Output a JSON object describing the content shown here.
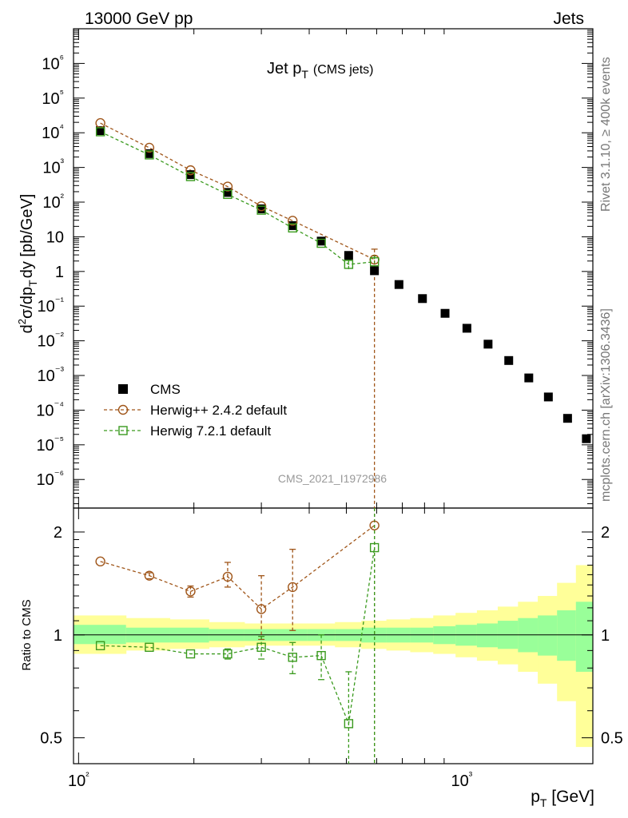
{
  "header": {
    "energy_label": "13000 GeV pp",
    "process_label": "Jets"
  },
  "side_labels": {
    "rivet": "Rivet 3.1.10, ≥ 400k events",
    "mcplots": "mcplots.cern.ch [arXiv:1306.3436]"
  },
  "watermark": "CMS_2021_I1972986",
  "chart_data": [
    {
      "type": "scatter",
      "panel": "main",
      "title": "Jet pT (CMS jets)",
      "title_main": "Jet p",
      "title_sub": "T",
      "title_extra": "(CMS jets)",
      "ylabel": "d²σ/dp_T dy [pb/GeV]",
      "ylabel_parts": {
        "d": "d",
        "sup": "2",
        "mid": "σ/dp",
        "sub": "T",
        "end": "dy [pb/GeV]"
      },
      "xscale": "log",
      "yscale": "log",
      "xlim": [
        97,
        2200
      ],
      "ylim": [
        1.5e-07,
        10000000.0
      ],
      "ytick_labels": [
        "10⁻⁶",
        "10⁻⁵",
        "10⁻⁴",
        "10⁻³",
        "10⁻²",
        "10⁻¹",
        "1",
        "10",
        "10²",
        "10³",
        "10⁴",
        "10⁵",
        "10⁶"
      ],
      "yticks": [
        1e-06,
        1e-05,
        0.0001,
        0.001,
        0.01,
        0.1,
        1,
        10,
        100,
        1000,
        10000,
        100000,
        1000000
      ],
      "legend_position": "lower-left",
      "series": [
        {
          "name": "CMS",
          "style": "data",
          "color": "#000000",
          "x": [
            114,
            153,
            196,
            245,
            300,
            362,
            430,
            507,
            592,
            686,
            790,
            905,
            1032,
            1172,
            1327,
            1497,
            1684,
            1890,
            2116
          ],
          "y": [
            11500,
            2500,
            620,
            190,
            64,
            21,
            7.5,
            2.9,
            1.05,
            0.42,
            0.165,
            0.062,
            0.023,
            0.008,
            0.0027,
            0.00085,
            0.00024,
            5.8e-05,
            1.5e-05
          ]
        },
        {
          "name": "Herwig++ 2.4.2 default",
          "style": "circle",
          "color": "#a0561a",
          "x": [
            114,
            153,
            196,
            245,
            300,
            362,
            592
          ],
          "y": [
            19000,
            3700,
            830,
            280,
            76,
            29,
            2.2
          ],
          "yerr": [
            0,
            0,
            0,
            0,
            0,
            0,
            2.2
          ]
        },
        {
          "name": "Herwig 7.2.1 default",
          "style": "square",
          "color": "#3a9a1e",
          "x": [
            114,
            153,
            196,
            245,
            300,
            362,
            430,
            507,
            592
          ],
          "y": [
            10700,
            2300,
            545,
            167,
            58.5,
            18,
            6.5,
            1.6,
            1.9
          ],
          "yerr": [
            0,
            0,
            0,
            0,
            0,
            0,
            0,
            0.5,
            0.9
          ]
        }
      ]
    },
    {
      "type": "scatter",
      "panel": "ratio",
      "xlabel": "p_T [GeV]",
      "xlabel_parts": {
        "p": "p",
        "sub": "T",
        "end": " [GeV]"
      },
      "ylabel": "Ratio to CMS",
      "xscale": "log",
      "xlim": [
        97,
        2200
      ],
      "ylim": [
        0.42,
        2.35
      ],
      "ytick_labels": [
        "0.5",
        "1",
        "2"
      ],
      "yticks": [
        0.5,
        1,
        2
      ],
      "xtick_labels": [
        "10²",
        "10³"
      ],
      "xticks": [
        100,
        1000
      ],
      "band": {
        "edges": [
          97,
          133,
          173,
          219,
          271,
          330,
          395,
          467,
          547,
          636,
          734,
          843,
          964,
          1096,
          1242,
          1403,
          1580,
          1774,
          1987,
          2200
        ],
        "inner_up": [
          0.07,
          0.05,
          0.05,
          0.04,
          0.04,
          0.04,
          0.04,
          0.04,
          0.05,
          0.05,
          0.05,
          0.06,
          0.07,
          0.08,
          0.1,
          0.12,
          0.14,
          0.18,
          0.25
        ],
        "inner_down": [
          0.06,
          0.05,
          0.05,
          0.04,
          0.04,
          0.04,
          0.04,
          0.04,
          0.05,
          0.05,
          0.05,
          0.06,
          0.07,
          0.08,
          0.09,
          0.11,
          0.13,
          0.16,
          0.22
        ],
        "outer_up": [
          0.14,
          0.12,
          0.11,
          0.09,
          0.08,
          0.08,
          0.08,
          0.09,
          0.1,
          0.11,
          0.12,
          0.14,
          0.16,
          0.18,
          0.21,
          0.25,
          0.3,
          0.42,
          0.6
        ],
        "outer_down": [
          0.12,
          0.1,
          0.09,
          0.08,
          0.07,
          0.07,
          0.07,
          0.08,
          0.09,
          0.1,
          0.11,
          0.12,
          0.14,
          0.16,
          0.18,
          0.22,
          0.28,
          0.36,
          0.53
        ],
        "inner_color": "#99ff99",
        "outer_color": "#ffff99"
      },
      "series": [
        {
          "name": "Herwig++ 2.4.2 default",
          "style": "circle",
          "color": "#a0561a",
          "x": [
            114,
            153,
            196,
            245,
            300,
            362,
            592
          ],
          "y": [
            1.64,
            1.49,
            1.34,
            1.48,
            1.19,
            1.38,
            2.09
          ],
          "err_lo": [
            0.02,
            0.03,
            0.05,
            0.1,
            0.22,
            0.35,
            2.0
          ],
          "err_hi": [
            0.02,
            0.03,
            0.05,
            0.15,
            0.3,
            0.4,
            2.0
          ]
        },
        {
          "name": "Herwig 7.2.1 default",
          "style": "square",
          "color": "#3a9a1e",
          "x": [
            114,
            153,
            196,
            245,
            300,
            362,
            430,
            507,
            592
          ],
          "y": [
            0.93,
            0.92,
            0.88,
            0.88,
            0.92,
            0.86,
            0.87,
            0.55,
            1.8
          ],
          "err_lo": [
            0.01,
            0.02,
            0.02,
            0.03,
            0.07,
            0.09,
            0.13,
            0.2,
            2.0
          ],
          "err_hi": [
            0.01,
            0.02,
            0.02,
            0.03,
            0.07,
            0.09,
            0.13,
            0.23,
            2.0
          ]
        }
      ]
    }
  ]
}
